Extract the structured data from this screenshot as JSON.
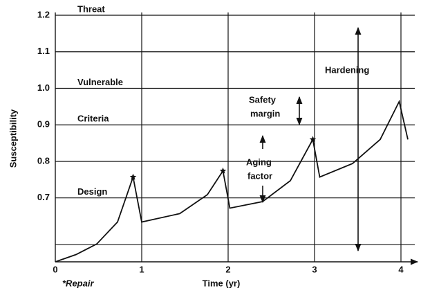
{
  "chart_data": {
    "type": "line",
    "xlabel": "Time (yr)",
    "ylabel": "Susceptibility",
    "xlim": [
      0,
      4.2
    ],
    "ylim": [
      0.525,
      1.2
    ],
    "xticks": [
      0,
      1,
      2,
      3,
      4
    ],
    "yticks": [
      0.7,
      0.8,
      0.9,
      {
        "value": 1,
        "label": "1.0"
      },
      1.1,
      1.2
    ],
    "hlines": [
      0.572
    ],
    "grid": true,
    "color": "#111111",
    "level_labels": [
      {
        "text": "Threat",
        "y": 1.2
      },
      {
        "text": "Vulnerable",
        "y": 1.0
      },
      {
        "text": "Criteria",
        "y": 0.9
      },
      {
        "text": "Design",
        "y": 0.7
      }
    ],
    "series": [
      {
        "color": "#111111",
        "x": [
          0,
          0.24,
          0.48,
          0.72,
          0.9,
          1.0,
          1.44,
          1.76,
          1.94,
          2.02,
          2.4,
          2.72,
          2.98,
          3.06,
          3.44,
          3.76,
          3.98,
          4.08
        ],
        "values": [
          0.525,
          0.545,
          0.574,
          0.634,
          0.757,
          0.634,
          0.657,
          0.709,
          0.774,
          0.672,
          0.69,
          0.747,
          0.86,
          0.757,
          0.794,
          0.86,
          0.964,
          0.86
        ]
      },
      {
        "name": "*Repair",
        "type": "scatter",
        "marker": "star",
        "color": "#111111",
        "x": [
          0.9,
          1.94,
          2.98
        ],
        "values": [
          0.757,
          0.774,
          0.86
        ]
      }
    ],
    "annotations": {
      "hardening": "Hardening",
      "safety_margin": [
        "Safety",
        "margin"
      ],
      "aging_factor": [
        "Aging",
        "factor"
      ]
    }
  }
}
